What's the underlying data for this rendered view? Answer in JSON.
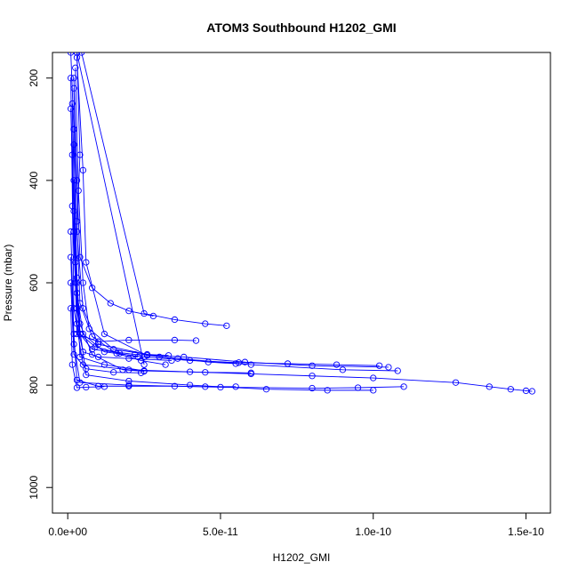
{
  "chart_data": {
    "type": "line",
    "title": "ATOM3 Southbound H1202_GMI",
    "xlabel": "H1202_GMI",
    "ylabel": "Pressure (mbar)",
    "xlim": [
      -5e-12,
      1.58e-10
    ],
    "ylim": [
      1050,
      150
    ],
    "y_reversed": true,
    "x_ticks": [
      0,
      5e-11,
      1e-10,
      1.5e-10
    ],
    "x_tick_labels": [
      "0.0e+00",
      "5.0e-11",
      "1.0e-10",
      "1.5e-10"
    ],
    "y_ticks": [
      200,
      400,
      600,
      800,
      1000
    ],
    "y_tick_labels": [
      "200",
      "400",
      "600",
      "800",
      "1000"
    ],
    "grid": false,
    "legend": "none",
    "marker": "open-circle",
    "color": "#0000ff",
    "series": [
      {
        "points": [
          [
            1e-12,
            150
          ],
          [
            2e-12,
            300
          ],
          [
            1.5e-12,
            450
          ],
          [
            2.5e-12,
            600
          ],
          [
            4e-12,
            700
          ],
          [
            8e-12,
            730
          ],
          [
            2.2e-11,
            740
          ],
          [
            3.8e-11,
            745
          ],
          [
            5.8e-11,
            755
          ],
          [
            8e-11,
            762
          ],
          [
            1.05e-10,
            765
          ]
        ]
      },
      {
        "points": [
          [
            3e-12,
            150
          ],
          [
            4e-12,
            350
          ],
          [
            3e-12,
            500
          ],
          [
            5e-12,
            650
          ],
          [
            1e-11,
            720
          ],
          [
            3e-11,
            745
          ],
          [
            6e-11,
            760
          ],
          [
            9e-11,
            770
          ],
          [
            1.08e-10,
            772
          ]
        ]
      },
      {
        "points": [
          [
            4.5e-12,
            150
          ],
          [
            2.5e-11,
            660
          ],
          [
            3.5e-11,
            672
          ],
          [
            4.5e-11,
            680
          ],
          [
            5.2e-11,
            684
          ]
        ]
      },
      {
        "points": [
          [
            2e-12,
            200
          ],
          [
            3e-12,
            400
          ],
          [
            4e-12,
            550
          ],
          [
            8e-12,
            610
          ],
          [
            1.4e-11,
            640
          ],
          [
            2e-11,
            655
          ],
          [
            2.8e-11,
            665
          ]
        ]
      },
      {
        "points": [
          [
            1.5e-12,
            250
          ],
          [
            2e-12,
            500
          ],
          [
            3e-12,
            700
          ],
          [
            1e-11,
            715
          ],
          [
            2e-11,
            712
          ],
          [
            3.5e-11,
            712
          ],
          [
            4.2e-11,
            713
          ]
        ]
      },
      {
        "points": [
          [
            1e-12,
            200
          ],
          [
            2e-12,
            650
          ],
          [
            5e-12,
            760
          ],
          [
            2e-11,
            770
          ],
          [
            4e-11,
            774
          ],
          [
            6e-11,
            778
          ],
          [
            8e-11,
            782
          ],
          [
            1e-10,
            786
          ],
          [
            1.27e-10,
            795
          ],
          [
            1.38e-10,
            803
          ],
          [
            1.45e-10,
            808
          ],
          [
            1.5e-10,
            811
          ],
          [
            1.52e-10,
            812
          ]
        ]
      },
      {
        "points": [
          [
            2e-12,
            300
          ],
          [
            3e-12,
            600
          ],
          [
            4e-12,
            745
          ],
          [
            1.2e-11,
            760
          ],
          [
            2.5e-11,
            772
          ],
          [
            4.5e-11,
            775
          ],
          [
            6e-11,
            776
          ]
        ]
      },
      {
        "points": [
          [
            2e-12,
            400
          ],
          [
            3e-12,
            650
          ],
          [
            6e-12,
            780
          ],
          [
            2e-11,
            792
          ],
          [
            4e-11,
            800
          ],
          [
            6.5e-11,
            808
          ],
          [
            8.5e-11,
            810
          ],
          [
            1e-10,
            810
          ]
        ]
      },
      {
        "points": [
          [
            1e-12,
            500
          ],
          [
            2e-12,
            700
          ],
          [
            3e-12,
            790
          ],
          [
            1e-11,
            802
          ],
          [
            2e-11,
            802
          ],
          [
            3.5e-11,
            802
          ],
          [
            4.5e-11,
            803
          ],
          [
            5.5e-11,
            803
          ]
        ]
      },
      {
        "points": [
          [
            1e-12,
            550
          ],
          [
            2e-12,
            720
          ],
          [
            4e-12,
            795
          ],
          [
            2e-11,
            800
          ],
          [
            5e-11,
            804
          ],
          [
            8e-11,
            806
          ],
          [
            9.5e-11,
            805
          ],
          [
            1.1e-10,
            803
          ]
        ]
      },
      {
        "points": [
          [
            3e-12,
            160
          ],
          [
            5e-12,
            380
          ],
          [
            6e-12,
            560
          ],
          [
            1.2e-11,
            700
          ],
          [
            2.6e-11,
            742
          ],
          [
            3.6e-11,
            748
          ],
          [
            4.6e-11,
            755
          ],
          [
            5.5e-11,
            758
          ]
        ]
      },
      {
        "points": [
          [
            2.5e-12,
            180
          ],
          [
            3.5e-12,
            420
          ],
          [
            5e-12,
            600
          ],
          [
            7e-12,
            690
          ],
          [
            1.5e-11,
            730
          ],
          [
            2.6e-11,
            740
          ],
          [
            3.3e-11,
            742
          ]
        ]
      },
      {
        "points": [
          [
            2e-12,
            220
          ],
          [
            3e-12,
            480
          ],
          [
            4e-12,
            640
          ],
          [
            8e-12,
            705
          ],
          [
            1.6e-11,
            738
          ],
          [
            2.4e-11,
            752
          ],
          [
            3.2e-11,
            760
          ]
        ]
      },
      {
        "points": [
          [
            1.5e-12,
            350
          ],
          [
            2.5e-12,
            560
          ],
          [
            4e-12,
            680
          ],
          [
            8e-12,
            740
          ],
          [
            1.8e-11,
            770
          ],
          [
            2.5e-11,
            773
          ]
        ]
      },
      {
        "points": [
          [
            3e-12,
            150
          ],
          [
            2.5e-11,
            760
          ]
        ]
      },
      {
        "points": [
          [
            1e-12,
            260
          ],
          [
            2e-12,
            460
          ],
          [
            3e-12,
            620
          ],
          [
            5e-12,
            700
          ],
          [
            1.2e-11,
            735
          ],
          [
            2.5e-11,
            745
          ],
          [
            4e-11,
            752
          ],
          [
            5.6e-11,
            756
          ],
          [
            7.2e-11,
            758
          ],
          [
            8.8e-11,
            760
          ],
          [
            1.02e-10,
            762
          ]
        ]
      },
      {
        "points": [
          [
            1e-12,
            600
          ],
          [
            2e-12,
            740
          ],
          [
            6e-12,
            768
          ],
          [
            1.5e-11,
            775
          ],
          [
            2.4e-11,
            776
          ]
        ]
      },
      {
        "points": [
          [
            1e-12,
            650
          ],
          [
            1.5e-12,
            760
          ],
          [
            3e-12,
            805
          ],
          [
            6e-12,
            804
          ],
          [
            1.2e-11,
            803
          ]
        ]
      },
      {
        "points": [
          [
            2e-12,
            500
          ],
          [
            3e-12,
            680
          ],
          [
            5e-12,
            735
          ],
          [
            1e-11,
            745
          ],
          [
            2e-11,
            748
          ],
          [
            3.4e-11,
            752
          ]
        ]
      },
      {
        "points": [
          [
            2e-12,
            330
          ],
          [
            3e-12,
            590
          ],
          [
            4e-12,
            700
          ],
          [
            9e-12,
            725
          ],
          [
            1.7e-11,
            738
          ],
          [
            2.3e-11,
            745
          ]
        ]
      }
    ]
  }
}
